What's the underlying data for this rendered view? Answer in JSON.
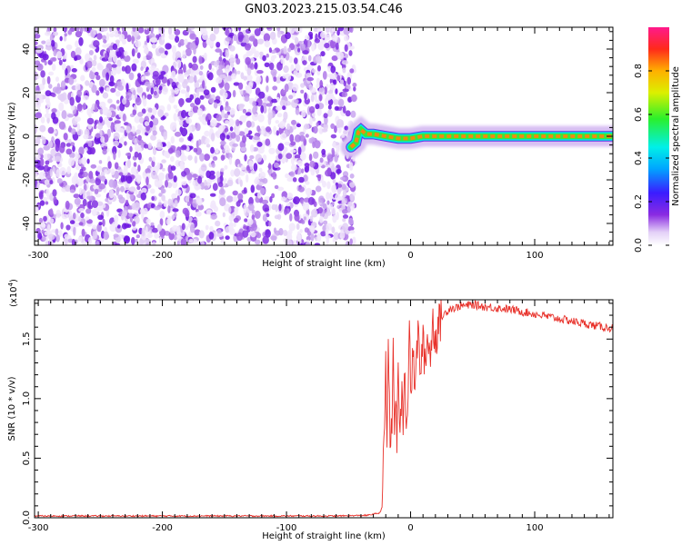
{
  "title": "GN03.2023.215.03.54.C46",
  "colors": {
    "snr_line": "#e8312a",
    "noise": "#7a10e0",
    "band": "#f28a10"
  },
  "chart_data": [
    {
      "type": "heatmap",
      "xlabel": "Height of straight line (km)",
      "ylabel": "Frequency (Hz)",
      "xlim": [
        -303,
        163
      ],
      "ylim": [
        -50,
        50
      ],
      "x_ticks": [
        "-300",
        "-200",
        "-100",
        "0",
        "100"
      ],
      "x_tick_values": [
        -300,
        -200,
        -100,
        0,
        100
      ],
      "y_ticks": [
        "-40",
        "-20",
        "0",
        "20",
        "40"
      ],
      "y_tick_values": [
        -40,
        -20,
        0,
        20,
        40
      ],
      "colorbar": {
        "label": "Normalized spectral amplitude",
        "range": [
          0,
          1
        ],
        "ticks": [
          "0.0",
          "0.2",
          "0.4",
          "0.6",
          "0.8"
        ],
        "tick_values": [
          0.0,
          0.2,
          0.4,
          0.6,
          0.8
        ],
        "colormap": "rainbow (white-violet-blue-cyan-green-yellow-red-pink)"
      },
      "noise_region_x": [
        -303,
        -45
      ],
      "signal_band": {
        "x_start": -45,
        "x_end": 163,
        "center_frequency_hz": 0,
        "half_width_hz": 2,
        "onset_wiggle": [
          [
            -48,
            -5
          ],
          [
            -44,
            -3
          ],
          [
            -42,
            2
          ],
          [
            -40,
            3
          ],
          [
            -36,
            1
          ],
          [
            -30,
            1
          ],
          [
            -20,
            0
          ],
          [
            -10,
            -1
          ],
          [
            0,
            -1
          ],
          [
            10,
            0
          ],
          [
            163,
            0
          ]
        ]
      }
    },
    {
      "type": "line",
      "xlabel": "Height of straight line (km)",
      "ylabel": "SNR (10 * v/v)",
      "y_multiplier": "(x10",
      "y_multiplier_exp": "4",
      "xlim": [
        -303,
        163
      ],
      "ylim": [
        0,
        18300
      ],
      "x_ticks": [
        "-300",
        "-200",
        "-100",
        "0",
        "100"
      ],
      "x_tick_values": [
        -300,
        -200,
        -100,
        0,
        100
      ],
      "y_ticks": [
        "0.0",
        "0.5",
        "1.0",
        "1.5"
      ],
      "y_tick_values": [
        0,
        5000,
        10000,
        15000
      ],
      "grid": false,
      "series": [
        {
          "x": [
            -303,
            -250,
            -200,
            -150,
            -100,
            -60,
            -35,
            -25,
            -23,
            -22,
            -21,
            -20,
            -19,
            -18,
            -17,
            -16,
            -15,
            -14,
            -13,
            -12,
            -11,
            -10,
            -9,
            -8,
            -7,
            -6,
            -5,
            -4,
            -3,
            -2,
            -1,
            0,
            2,
            4,
            6,
            8,
            10,
            12,
            14,
            16,
            18,
            20,
            22,
            25,
            28,
            32,
            36,
            40,
            45,
            50,
            55,
            60,
            70,
            80,
            90,
            100,
            110,
            120,
            130,
            140,
            150,
            163
          ],
          "y": [
            150,
            150,
            150,
            150,
            150,
            150,
            200,
            400,
            900,
            4000,
            8000,
            12500,
            6500,
            15000,
            9500,
            5200,
            8000,
            14200,
            7000,
            11000,
            6500,
            12000,
            9000,
            7500,
            10000,
            8200,
            13000,
            9500,
            8500,
            11500,
            16800,
            11000,
            13000,
            11500,
            15500,
            12500,
            14500,
            13000,
            15500,
            13500,
            16500,
            15000,
            16000,
            16800,
            17200,
            17600,
            17600,
            17800,
            17800,
            17900,
            17800,
            17700,
            17600,
            17500,
            17300,
            17100,
            16900,
            16700,
            16500,
            16300,
            16100,
            15900
          ]
        }
      ]
    }
  ]
}
